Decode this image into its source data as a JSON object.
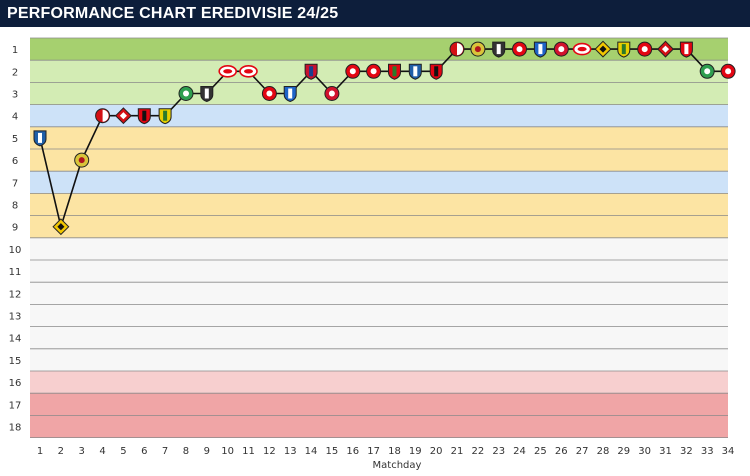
{
  "header": {
    "title": "PERFORMANCE CHART EREDIVISIE 24/25"
  },
  "colors": {
    "header_bg": "#0d1e3b",
    "line": "#111111"
  },
  "chart_data": {
    "type": "line",
    "title": "PERFORMANCE CHART EREDIVISIE 24/25",
    "xlabel": "Matchday",
    "ylabel": "",
    "x": [
      1,
      2,
      3,
      4,
      5,
      6,
      7,
      8,
      9,
      10,
      11,
      12,
      13,
      14,
      15,
      16,
      17,
      18,
      19,
      20,
      21,
      22,
      23,
      24,
      25,
      26,
      27,
      28,
      29,
      30,
      31,
      32,
      33,
      34
    ],
    "xlim": [
      1,
      34
    ],
    "ylim": [
      18,
      1
    ],
    "y_inverted": true,
    "y_ticks": [
      "1",
      "2",
      "3",
      "4",
      "5",
      "6",
      "7",
      "8",
      "9",
      "10",
      "11",
      "12",
      "13",
      "14",
      "15",
      "16",
      "17",
      "18"
    ],
    "x_ticks": [
      "1",
      "2",
      "3",
      "4",
      "5",
      "6",
      "7",
      "8",
      "9",
      "10",
      "11",
      "12",
      "13",
      "14",
      "15",
      "16",
      "17",
      "18",
      "19",
      "20",
      "21",
      "22",
      "23",
      "24",
      "25",
      "26",
      "27",
      "28",
      "29",
      "30",
      "31",
      "32",
      "33",
      "34"
    ],
    "grid": true,
    "series": [
      {
        "values": [
          5,
          9,
          6,
          4,
          4,
          4,
          4,
          3,
          3,
          2,
          2,
          3,
          3,
          2,
          3,
          2,
          2,
          2,
          2,
          2,
          1,
          1,
          1,
          1,
          1,
          1,
          1,
          1,
          1,
          1,
          1,
          1,
          2,
          2
        ]
      }
    ],
    "opponent_badges": [
      "heerenveen",
      "nac",
      "go-ahead",
      "feyenoord",
      "utrecht",
      "excelsior",
      "fortuna",
      "groningen",
      "heracles",
      "psv",
      "psv",
      "twente",
      "zwolle",
      "willem-ii",
      "ajax",
      "twente",
      "sparta",
      "nec",
      "heerenveen",
      "excelsior",
      "feyenoord",
      "go-ahead",
      "heracles",
      "twente",
      "zwolle",
      "ajax",
      "psv",
      "nac",
      "fortuna",
      "sparta",
      "utrecht",
      "az",
      "groningen",
      "twente"
    ],
    "zones": [
      {
        "from": 1,
        "to": 1,
        "color": "#a6d06f"
      },
      {
        "from": 2,
        "to": 3,
        "color": "#d3ecb4"
      },
      {
        "from": 4,
        "to": 4,
        "color": "#cde2f8"
      },
      {
        "from": 5,
        "to": 6,
        "color": "#fce4a3"
      },
      {
        "from": 7,
        "to": 7,
        "color": "#cde2f8"
      },
      {
        "from": 8,
        "to": 9,
        "color": "#fce4a3"
      },
      {
        "from": 10,
        "to": 15,
        "color": "#f7f7f7"
      },
      {
        "from": 16,
        "to": 16,
        "color": "#f7cfcf"
      },
      {
        "from": 17,
        "to": 18,
        "color": "#f0a5a6"
      }
    ]
  }
}
